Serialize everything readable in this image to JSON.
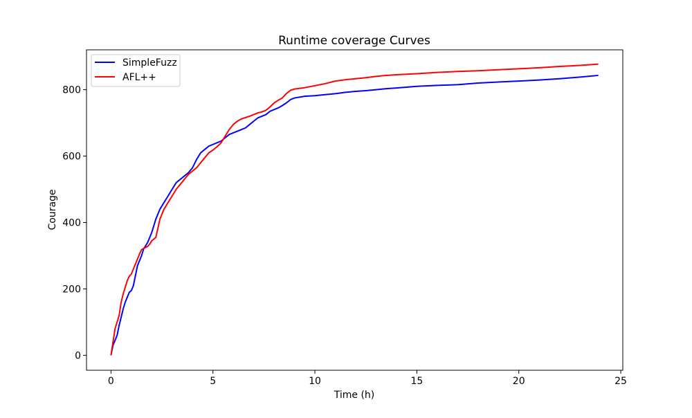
{
  "chart_data": {
    "type": "line",
    "title": "Runtime coverage Curves",
    "xlabel": "Time (h)",
    "ylabel": "Courage",
    "xlim": [
      -1.2,
      25.1
    ],
    "ylim": [
      -45,
      920
    ],
    "xticks": [
      0,
      5,
      10,
      15,
      20,
      25
    ],
    "yticks": [
      0,
      200,
      400,
      600,
      800
    ],
    "grid": false,
    "legend_position": "upper-left",
    "series": [
      {
        "name": "SimpleFuzz",
        "color": "#0000ff",
        "x": [
          0,
          0.1,
          0.2,
          0.3,
          0.4,
          0.5,
          0.6,
          0.7,
          0.8,
          0.9,
          1.0,
          1.1,
          1.2,
          1.3,
          1.4,
          1.5,
          1.6,
          1.7,
          1.8,
          1.9,
          2.0,
          2.2,
          2.4,
          2.6,
          2.8,
          3.0,
          3.2,
          3.4,
          3.6,
          3.8,
          4.0,
          4.2,
          4.4,
          4.6,
          4.8,
          5.0,
          5.2,
          5.4,
          5.6,
          5.8,
          6.0,
          6.2,
          6.4,
          6.6,
          6.8,
          7.0,
          7.2,
          7.4,
          7.6,
          7.8,
          8.0,
          8.2,
          8.4,
          8.6,
          8.8,
          9.0,
          9.5,
          10,
          10.5,
          11,
          11.5,
          12,
          12.5,
          13,
          13.5,
          14,
          15,
          16,
          17,
          18,
          19,
          20,
          21,
          22,
          23,
          23.9
        ],
        "y": [
          0,
          30,
          45,
          60,
          90,
          115,
          140,
          160,
          175,
          190,
          195,
          210,
          240,
          270,
          285,
          300,
          320,
          330,
          340,
          355,
          370,
          410,
          440,
          460,
          480,
          500,
          520,
          530,
          540,
          550,
          565,
          590,
          610,
          620,
          630,
          635,
          640,
          645,
          655,
          665,
          670,
          675,
          680,
          685,
          695,
          705,
          715,
          720,
          725,
          735,
          740,
          745,
          752,
          760,
          770,
          775,
          780,
          782,
          785,
          788,
          792,
          795,
          797,
          800,
          803,
          805,
          810,
          813,
          815,
          820,
          823,
          826,
          829,
          833,
          838,
          843
        ]
      },
      {
        "name": "AFL++",
        "color": "#ff0000",
        "x": [
          0,
          0.1,
          0.2,
          0.3,
          0.4,
          0.5,
          0.6,
          0.7,
          0.8,
          0.9,
          1.0,
          1.1,
          1.2,
          1.3,
          1.4,
          1.5,
          1.6,
          1.7,
          1.8,
          1.9,
          2.0,
          2.2,
          2.4,
          2.6,
          2.8,
          3.0,
          3.2,
          3.4,
          3.6,
          3.8,
          4.0,
          4.2,
          4.4,
          4.6,
          4.8,
          5.0,
          5.2,
          5.4,
          5.6,
          5.8,
          6.0,
          6.2,
          6.4,
          6.6,
          6.8,
          7.0,
          7.2,
          7.4,
          7.6,
          7.8,
          8.0,
          8.2,
          8.4,
          8.6,
          8.8,
          9.0,
          9.5,
          10,
          10.5,
          11,
          11.5,
          12,
          12.5,
          13,
          13.5,
          14,
          15,
          16,
          17,
          18,
          19,
          20,
          21,
          22,
          23,
          23.9
        ],
        "y": [
          0,
          40,
          80,
          100,
          120,
          160,
          185,
          205,
          225,
          238,
          245,
          260,
          275,
          290,
          305,
          318,
          322,
          325,
          328,
          335,
          345,
          355,
          410,
          440,
          460,
          480,
          500,
          515,
          530,
          545,
          555,
          565,
          580,
          595,
          610,
          618,
          628,
          640,
          660,
          680,
          695,
          705,
          712,
          716,
          720,
          725,
          730,
          733,
          738,
          748,
          760,
          768,
          775,
          788,
          798,
          802,
          806,
          812,
          818,
          826,
          830,
          833,
          836,
          840,
          843,
          845,
          848,
          852,
          855,
          857,
          860,
          863,
          866,
          870,
          873,
          877
        ]
      }
    ]
  }
}
